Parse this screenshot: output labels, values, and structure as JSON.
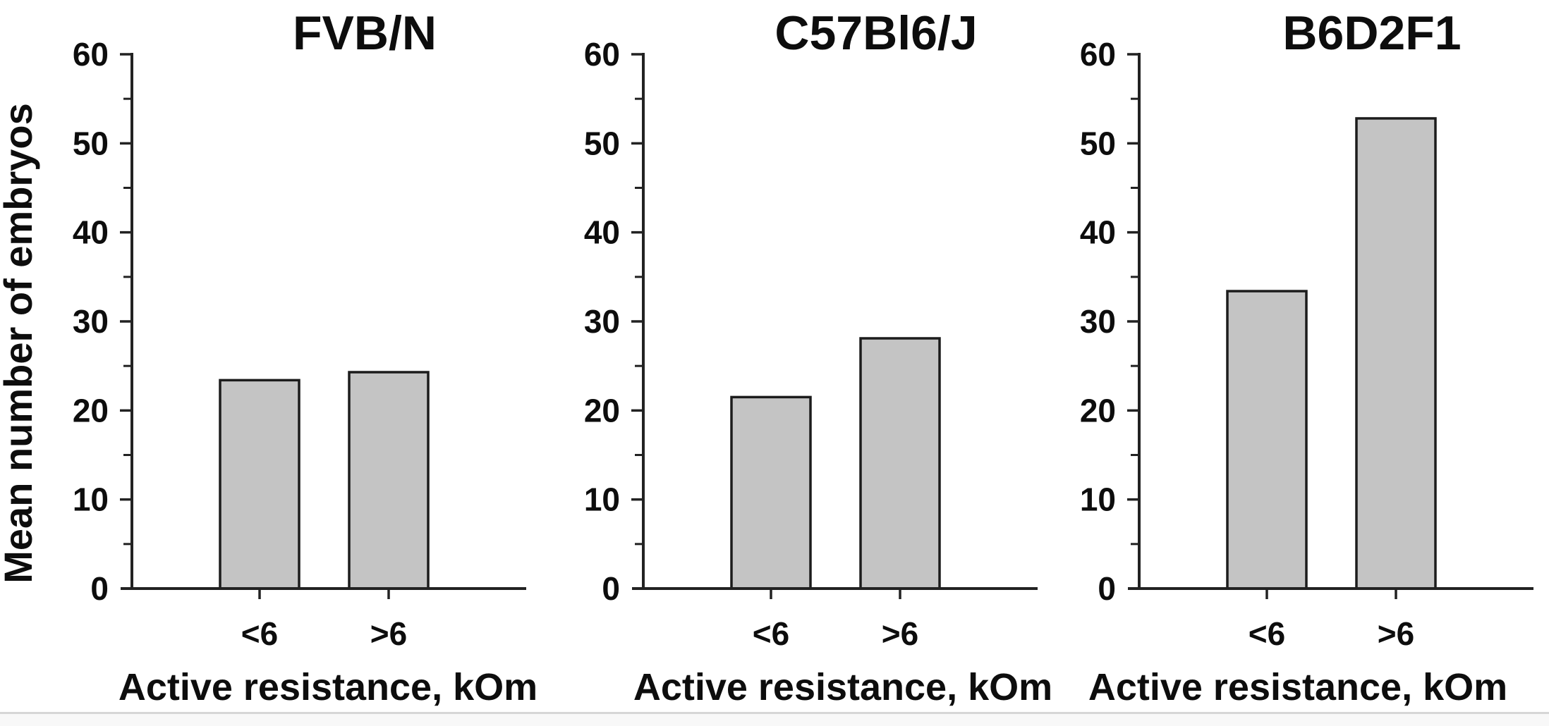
{
  "figure": {
    "ylabel": "Mean number of embryos",
    "xlabel": "Active resistance, kOm"
  },
  "axis": {
    "ymin": 0,
    "ymax": 60,
    "yticks": [
      0,
      10,
      20,
      30,
      40,
      50,
      60
    ],
    "minor_yticks": [
      5,
      15,
      25,
      35,
      45,
      55
    ]
  },
  "colors": {
    "bar_fill": "#c4c4c4",
    "bar_stroke": "#1c1c1c",
    "axis": "#222222",
    "text": "#0d0d0d",
    "divider": "#d6d6d6",
    "footer_bg": "#f8f8f8"
  },
  "chart_data": [
    {
      "type": "bar",
      "title": "FVB/N",
      "categories": [
        "<6",
        ">6"
      ],
      "values": [
        23.4,
        24.3
      ],
      "xlabel": "Active resistance, kOm",
      "ylabel": "Mean number of embryos",
      "ylim": [
        0,
        60
      ],
      "grid": false,
      "legend": "none"
    },
    {
      "type": "bar",
      "title": "C57Bl6/J",
      "categories": [
        "<6",
        ">6"
      ],
      "values": [
        21.5,
        28.1
      ],
      "xlabel": "Active resistance, kOm",
      "ylim": [
        0,
        60
      ],
      "grid": false,
      "legend": "none"
    },
    {
      "type": "bar",
      "title": "B6D2F1",
      "categories": [
        "<6",
        ">6"
      ],
      "values": [
        33.4,
        52.8
      ],
      "xlabel": "Active resistance, kOm",
      "ylim": [
        0,
        60
      ],
      "grid": false,
      "legend": "none"
    }
  ]
}
